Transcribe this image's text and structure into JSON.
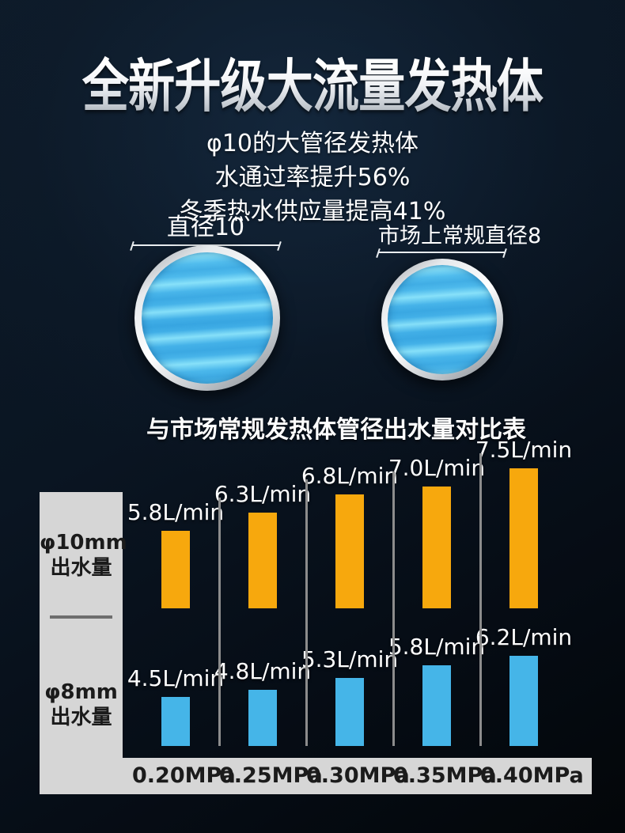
{
  "header": {
    "title": "全新升级大流量发热体",
    "subtitle_lines": [
      "φ10的大管径发热体",
      "水通过率提升56%",
      "冬季热水供应量提高41%"
    ]
  },
  "diameter_compare": {
    "new_pipe_label": "直径10",
    "old_pipe_label": "市场上常规直径8"
  },
  "chart": {
    "title": "与市场常规发热体管径出水量对比表"
  },
  "chart_data": {
    "type": "bar",
    "title": "与市场常规发热体管径出水量对比表",
    "categories": [
      "0.20MPa",
      "0.25MPa",
      "0.30MPa",
      "0.35MPa",
      "0.40MPa"
    ],
    "series": [
      {
        "name": "φ10mm出水量",
        "row_label_lines": [
          "φ10mm",
          "出水量"
        ],
        "unit": "L/min",
        "color": "#F7A80D",
        "values": [
          5.8,
          6.3,
          6.8,
          7.0,
          7.5
        ]
      },
      {
        "name": "φ8mm出水量",
        "row_label_lines": [
          "φ8mm",
          "出水量"
        ],
        "unit": "L/min",
        "color": "#45B5E8",
        "values": [
          4.5,
          4.8,
          5.3,
          5.8,
          6.2
        ]
      }
    ],
    "xlabel": "",
    "ylabel": "",
    "grid": false,
    "legend_position": "left-row-labels",
    "value_label_format": "{value}L/min"
  },
  "colors": {
    "background_top": "#0d1a28",
    "background_bottom": "#030609",
    "orange_bar": "#F7A80D",
    "blue_bar": "#45B5E8",
    "panel_gray": "#D6D6D6",
    "divider_gray": "#8C8C8C",
    "dark_label": "#1B1B1B",
    "white_text": "#FFFFFF"
  }
}
